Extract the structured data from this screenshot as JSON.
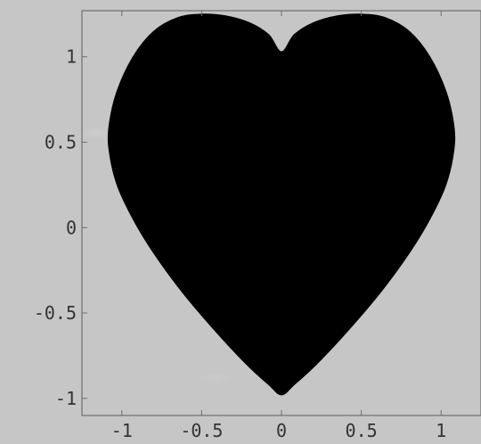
{
  "chart_data": {
    "type": "area",
    "title": "",
    "xlabel": "",
    "ylabel": "",
    "xlim": [
      -1.25,
      1.25
    ],
    "ylim": [
      -1.1,
      1.27
    ],
    "x_ticks": [
      {
        "value": -1,
        "label": "-1"
      },
      {
        "value": -0.5,
        "label": "-0.5"
      },
      {
        "value": 0,
        "label": "0"
      },
      {
        "value": 0.5,
        "label": "0.5"
      },
      {
        "value": 1,
        "label": "1"
      }
    ],
    "y_ticks": [
      {
        "value": 1,
        "label": "1"
      },
      {
        "value": 0.5,
        "label": "0.5"
      },
      {
        "value": 0,
        "label": "0"
      },
      {
        "value": -0.5,
        "label": "-0.5"
      },
      {
        "value": -1,
        "label": "-1"
      }
    ],
    "grid": false,
    "legend": "none",
    "series": [
      {
        "fill": "#000000",
        "points": [
          [
            0.0,
            1.03
          ],
          [
            0.08,
            1.13
          ],
          [
            0.2,
            1.2
          ],
          [
            0.35,
            1.24
          ],
          [
            0.5,
            1.25
          ],
          [
            0.65,
            1.23
          ],
          [
            0.8,
            1.15
          ],
          [
            0.93,
            1.0
          ],
          [
            1.03,
            0.8
          ],
          [
            1.08,
            0.6
          ],
          [
            1.08,
            0.45
          ],
          [
            1.03,
            0.25
          ],
          [
            0.93,
            0.05
          ],
          [
            0.8,
            -0.15
          ],
          [
            0.62,
            -0.38
          ],
          [
            0.42,
            -0.6
          ],
          [
            0.22,
            -0.8
          ],
          [
            0.08,
            -0.92
          ],
          [
            0.0,
            -0.98
          ],
          [
            -0.08,
            -0.92
          ],
          [
            -0.22,
            -0.8
          ],
          [
            -0.42,
            -0.6
          ],
          [
            -0.62,
            -0.38
          ],
          [
            -0.8,
            -0.15
          ],
          [
            -0.93,
            0.05
          ],
          [
            -1.03,
            0.25
          ],
          [
            -1.08,
            0.45
          ],
          [
            -1.08,
            0.6
          ],
          [
            -1.03,
            0.8
          ],
          [
            -0.93,
            1.0
          ],
          [
            -0.8,
            1.15
          ],
          [
            -0.65,
            1.23
          ],
          [
            -0.5,
            1.25
          ],
          [
            -0.35,
            1.24
          ],
          [
            -0.2,
            1.2
          ],
          [
            -0.08,
            1.13
          ]
        ]
      }
    ],
    "colors": {
      "background": "#c6c6c6",
      "frame": "#6e6e6e",
      "tick_label": "#333333"
    }
  }
}
